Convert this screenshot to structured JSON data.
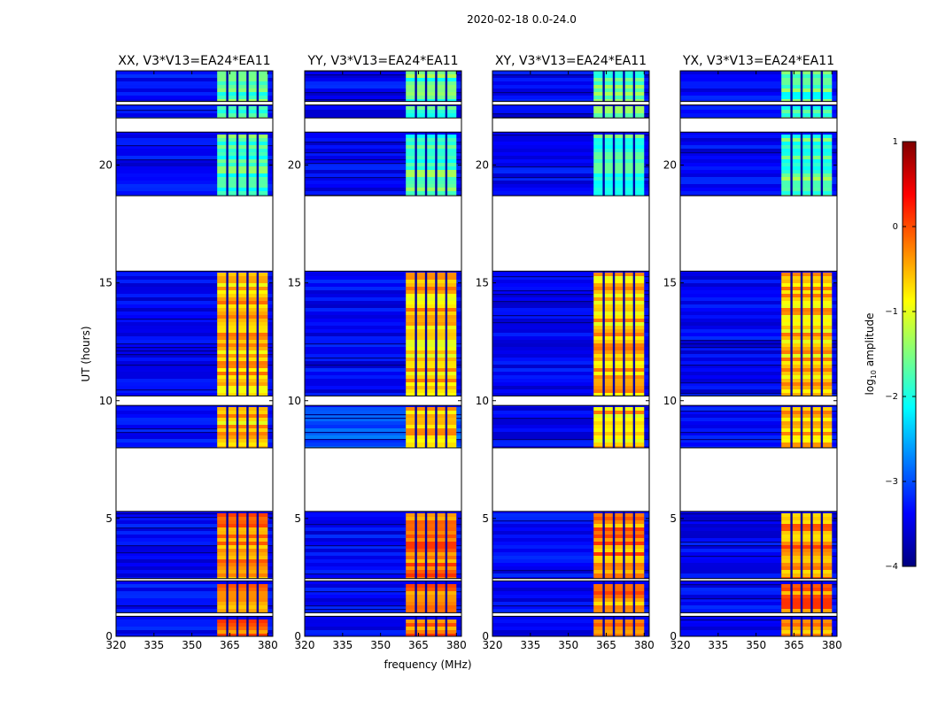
{
  "chart_data": {
    "type": "heatmap",
    "suptitle": "2020-02-18 0.0-24.0",
    "xlabel": "frequency (MHz)",
    "ylabel": "UT (hours)",
    "xlim": [
      320,
      382
    ],
    "ylim": [
      0,
      24
    ],
    "xticks": [
      320,
      335,
      350,
      365,
      380
    ],
    "yticks": [
      0,
      5,
      10,
      15,
      20
    ],
    "panels": [
      {
        "title": "XX, V3*V13=EA24*EA11"
      },
      {
        "title": "YY, V3*V13=EA24*EA11"
      },
      {
        "title": "XY, V3*V13=EA24*EA11"
      },
      {
        "title": "YX, V3*V13=EA24*EA11"
      }
    ],
    "colorbar": {
      "label": "log10 amplitude",
      "label_base": "log",
      "label_sub": "10",
      "label_rest": " amplitude",
      "range": [
        -4,
        1
      ],
      "ticks": [
        1,
        0,
        -1,
        -2,
        -3,
        -4
      ],
      "tick_labels": [
        "1",
        "0",
        "−1",
        "−2",
        "−3",
        "−4"
      ],
      "colormap": [
        "#00007f",
        "#0000ff",
        "#007fff",
        "#00ffff",
        "#7fff7f",
        "#ffff00",
        "#ff7f00",
        "#ff0000",
        "#7f0000"
      ]
    },
    "signal_band_mhz": [
      360,
      380
    ],
    "channel_gaps_mhz": [
      364,
      368,
      372,
      376
    ],
    "data_gaps_hours": [
      [
        0.85,
        1.0
      ],
      [
        2.35,
        2.45
      ],
      [
        5.3,
        8.0
      ],
      [
        9.8,
        10.2
      ],
      [
        15.5,
        18.7
      ],
      [
        21.4,
        22.0
      ],
      [
        22.55,
        22.7
      ]
    ],
    "sampled_log_amplitude": {
      "background": -3.4,
      "band_hours_0_5": -0.3,
      "band_hours_8_16": -0.6,
      "band_hours_19_24": -1.7
    }
  }
}
